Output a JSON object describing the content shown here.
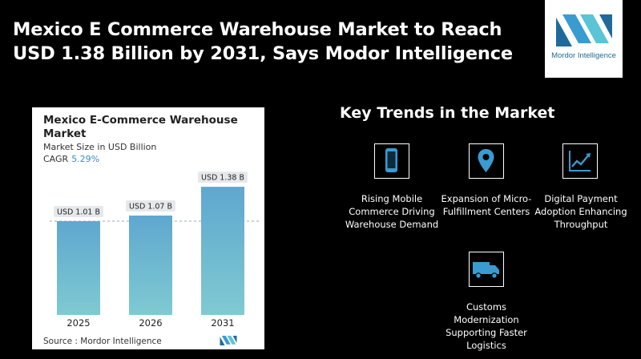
{
  "headline": "Mexico E Commerce Warehouse Market to Reach USD 1.38 Billion by 2031, Says Modor Intelligence",
  "logo": {
    "name": "Mordor Intelligence",
    "accent": "#1f6a9a"
  },
  "card": {
    "title": "Mexico E-Commerce Warehouse Market",
    "subtitle": "Market Size in USD Billion",
    "cagr_label": "CAGR",
    "cagr_value": "5.29%",
    "source": "Source : Mordor Intelligence"
  },
  "chart_data": {
    "type": "bar",
    "categories": [
      "2025",
      "2026",
      "2031"
    ],
    "values": [
      1.01,
      1.07,
      1.38
    ],
    "data_labels": [
      "USD 1.01 B",
      "USD 1.07 B",
      "USD 1.38 B"
    ],
    "title": "Mexico E-Commerce Warehouse Market",
    "ylabel": "Market Size in USD Billion",
    "ylim": [
      0,
      1.45
    ],
    "grid": false,
    "reference_line_value": 1.01,
    "bar_color_top": "#5fa7cf",
    "bar_color_bottom": "#7fcad2"
  },
  "trends": {
    "title": "Key Trends in the Market",
    "items": [
      {
        "icon": "smartphone-icon",
        "label": "Rising Mobile Commerce Driving Warehouse Demand"
      },
      {
        "icon": "location-pin-icon",
        "label": "Expansion of Micro-Fulfillment Centers"
      },
      {
        "icon": "line-chart-icon",
        "label": "Digital Payment Adoption Enhancing Throughput"
      },
      {
        "icon": "delivery-truck-icon",
        "label": "Customs Modernization Supporting Faster Logistics"
      }
    ]
  }
}
